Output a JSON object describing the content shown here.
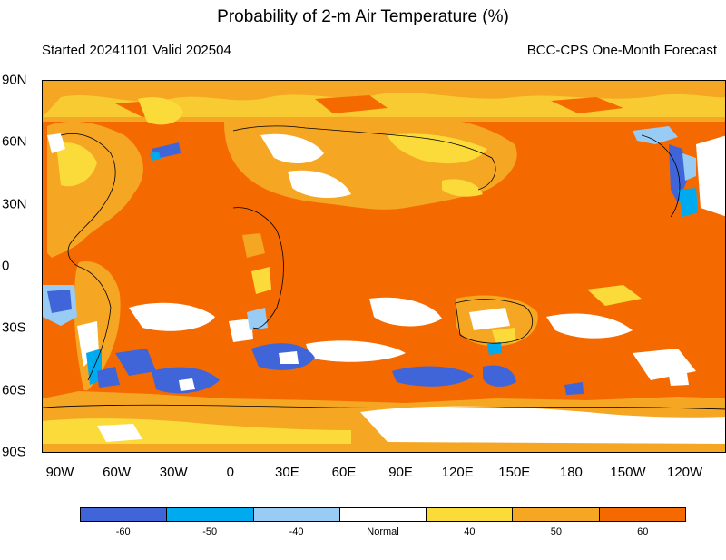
{
  "title": "Probability of 2-m Air Temperature (%)",
  "subtitle_left": "Started 20241101  Valid 202504",
  "subtitle_right": "BCC-CPS One-Month Forecast",
  "lat_labels": [
    "90N",
    "60N",
    "30N",
    "0",
    "30S",
    "60S",
    "90S"
  ],
  "lon_labels": [
    "90W",
    "60W",
    "30W",
    "0",
    "30E",
    "60E",
    "90E",
    "120E",
    "150E",
    "180",
    "150W",
    "120W"
  ],
  "legend": {
    "colors": [
      "#3f65d8",
      "#00aaee",
      "#99ccf5",
      "#ffffff",
      "#fbdb3a",
      "#f5a623",
      "#f56a00"
    ],
    "labels": [
      "-60",
      "-50",
      "-40",
      "Normal",
      "40",
      "50",
      "60"
    ]
  },
  "map_colors": {
    "background": "#f56a00",
    "ocean_dominant": "#f56a00",
    "land_mottled": "#f5a623",
    "light_patch": "#fbdb3a",
    "normal": "#ffffff",
    "cold_blue": "#3f65d8",
    "mid_blue": "#00aaee",
    "light_blue": "#99ccf5",
    "coastline": "#000000"
  }
}
